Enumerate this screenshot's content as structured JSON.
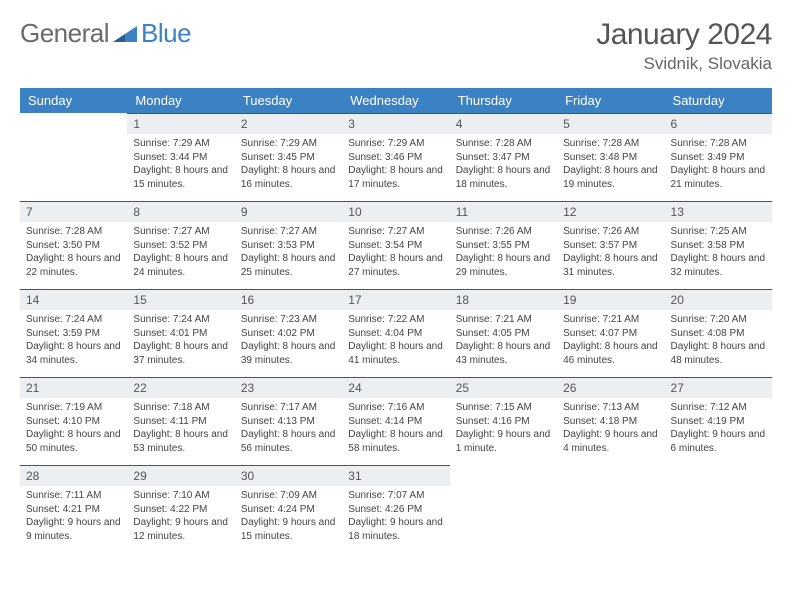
{
  "brand": {
    "text1": "General",
    "text2": "Blue"
  },
  "title": "January 2024",
  "location": "Svidnik, Slovakia",
  "colors": {
    "header_bg": "#3b82c4",
    "daynum_bg": "#eceff1",
    "row_border": "#2f5b7f"
  },
  "weekdays": [
    "Sunday",
    "Monday",
    "Tuesday",
    "Wednesday",
    "Thursday",
    "Friday",
    "Saturday"
  ],
  "weeks": [
    [
      {
        "n": "",
        "sr": "",
        "ss": "",
        "dl": ""
      },
      {
        "n": "1",
        "sr": "Sunrise: 7:29 AM",
        "ss": "Sunset: 3:44 PM",
        "dl": "Daylight: 8 hours and 15 minutes."
      },
      {
        "n": "2",
        "sr": "Sunrise: 7:29 AM",
        "ss": "Sunset: 3:45 PM",
        "dl": "Daylight: 8 hours and 16 minutes."
      },
      {
        "n": "3",
        "sr": "Sunrise: 7:29 AM",
        "ss": "Sunset: 3:46 PM",
        "dl": "Daylight: 8 hours and 17 minutes."
      },
      {
        "n": "4",
        "sr": "Sunrise: 7:28 AM",
        "ss": "Sunset: 3:47 PM",
        "dl": "Daylight: 8 hours and 18 minutes."
      },
      {
        "n": "5",
        "sr": "Sunrise: 7:28 AM",
        "ss": "Sunset: 3:48 PM",
        "dl": "Daylight: 8 hours and 19 minutes."
      },
      {
        "n": "6",
        "sr": "Sunrise: 7:28 AM",
        "ss": "Sunset: 3:49 PM",
        "dl": "Daylight: 8 hours and 21 minutes."
      }
    ],
    [
      {
        "n": "7",
        "sr": "Sunrise: 7:28 AM",
        "ss": "Sunset: 3:50 PM",
        "dl": "Daylight: 8 hours and 22 minutes."
      },
      {
        "n": "8",
        "sr": "Sunrise: 7:27 AM",
        "ss": "Sunset: 3:52 PM",
        "dl": "Daylight: 8 hours and 24 minutes."
      },
      {
        "n": "9",
        "sr": "Sunrise: 7:27 AM",
        "ss": "Sunset: 3:53 PM",
        "dl": "Daylight: 8 hours and 25 minutes."
      },
      {
        "n": "10",
        "sr": "Sunrise: 7:27 AM",
        "ss": "Sunset: 3:54 PM",
        "dl": "Daylight: 8 hours and 27 minutes."
      },
      {
        "n": "11",
        "sr": "Sunrise: 7:26 AM",
        "ss": "Sunset: 3:55 PM",
        "dl": "Daylight: 8 hours and 29 minutes."
      },
      {
        "n": "12",
        "sr": "Sunrise: 7:26 AM",
        "ss": "Sunset: 3:57 PM",
        "dl": "Daylight: 8 hours and 31 minutes."
      },
      {
        "n": "13",
        "sr": "Sunrise: 7:25 AM",
        "ss": "Sunset: 3:58 PM",
        "dl": "Daylight: 8 hours and 32 minutes."
      }
    ],
    [
      {
        "n": "14",
        "sr": "Sunrise: 7:24 AM",
        "ss": "Sunset: 3:59 PM",
        "dl": "Daylight: 8 hours and 34 minutes."
      },
      {
        "n": "15",
        "sr": "Sunrise: 7:24 AM",
        "ss": "Sunset: 4:01 PM",
        "dl": "Daylight: 8 hours and 37 minutes."
      },
      {
        "n": "16",
        "sr": "Sunrise: 7:23 AM",
        "ss": "Sunset: 4:02 PM",
        "dl": "Daylight: 8 hours and 39 minutes."
      },
      {
        "n": "17",
        "sr": "Sunrise: 7:22 AM",
        "ss": "Sunset: 4:04 PM",
        "dl": "Daylight: 8 hours and 41 minutes."
      },
      {
        "n": "18",
        "sr": "Sunrise: 7:21 AM",
        "ss": "Sunset: 4:05 PM",
        "dl": "Daylight: 8 hours and 43 minutes."
      },
      {
        "n": "19",
        "sr": "Sunrise: 7:21 AM",
        "ss": "Sunset: 4:07 PM",
        "dl": "Daylight: 8 hours and 46 minutes."
      },
      {
        "n": "20",
        "sr": "Sunrise: 7:20 AM",
        "ss": "Sunset: 4:08 PM",
        "dl": "Daylight: 8 hours and 48 minutes."
      }
    ],
    [
      {
        "n": "21",
        "sr": "Sunrise: 7:19 AM",
        "ss": "Sunset: 4:10 PM",
        "dl": "Daylight: 8 hours and 50 minutes."
      },
      {
        "n": "22",
        "sr": "Sunrise: 7:18 AM",
        "ss": "Sunset: 4:11 PM",
        "dl": "Daylight: 8 hours and 53 minutes."
      },
      {
        "n": "23",
        "sr": "Sunrise: 7:17 AM",
        "ss": "Sunset: 4:13 PM",
        "dl": "Daylight: 8 hours and 56 minutes."
      },
      {
        "n": "24",
        "sr": "Sunrise: 7:16 AM",
        "ss": "Sunset: 4:14 PM",
        "dl": "Daylight: 8 hours and 58 minutes."
      },
      {
        "n": "25",
        "sr": "Sunrise: 7:15 AM",
        "ss": "Sunset: 4:16 PM",
        "dl": "Daylight: 9 hours and 1 minute."
      },
      {
        "n": "26",
        "sr": "Sunrise: 7:13 AM",
        "ss": "Sunset: 4:18 PM",
        "dl": "Daylight: 9 hours and 4 minutes."
      },
      {
        "n": "27",
        "sr": "Sunrise: 7:12 AM",
        "ss": "Sunset: 4:19 PM",
        "dl": "Daylight: 9 hours and 6 minutes."
      }
    ],
    [
      {
        "n": "28",
        "sr": "Sunrise: 7:11 AM",
        "ss": "Sunset: 4:21 PM",
        "dl": "Daylight: 9 hours and 9 minutes."
      },
      {
        "n": "29",
        "sr": "Sunrise: 7:10 AM",
        "ss": "Sunset: 4:22 PM",
        "dl": "Daylight: 9 hours and 12 minutes."
      },
      {
        "n": "30",
        "sr": "Sunrise: 7:09 AM",
        "ss": "Sunset: 4:24 PM",
        "dl": "Daylight: 9 hours and 15 minutes."
      },
      {
        "n": "31",
        "sr": "Sunrise: 7:07 AM",
        "ss": "Sunset: 4:26 PM",
        "dl": "Daylight: 9 hours and 18 minutes."
      },
      {
        "n": "",
        "sr": "",
        "ss": "",
        "dl": ""
      },
      {
        "n": "",
        "sr": "",
        "ss": "",
        "dl": ""
      },
      {
        "n": "",
        "sr": "",
        "ss": "",
        "dl": ""
      }
    ]
  ]
}
